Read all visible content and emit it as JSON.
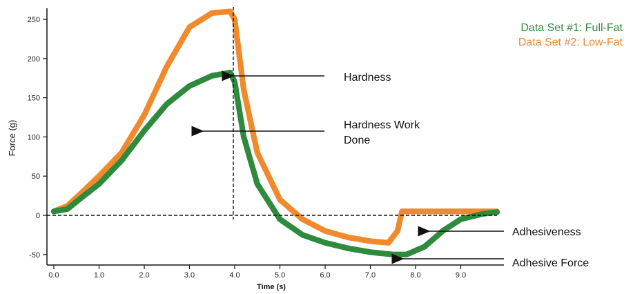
{
  "colors": {
    "full_fat": "#2e8b3e",
    "low_fat": "#f08a2c",
    "axis": "#111111"
  },
  "chart_data": {
    "type": "scatter",
    "title": "",
    "xlabel": "Time (s)",
    "ylabel": "Force (g)",
    "xlim": [
      0,
      9.9
    ],
    "ylim": [
      -62,
      262
    ],
    "x_ticks": [
      "0.0",
      "1.0",
      "2.0",
      "3.0",
      "4.0",
      "5.0",
      "6.0",
      "7.0",
      "8.0",
      "9.0"
    ],
    "y_ticks": [
      "-50",
      "0",
      "50",
      "100",
      "150",
      "200",
      "250"
    ],
    "grid": false,
    "legend_position": "top-right",
    "series": [
      {
        "name": "Data Set #1: Full-Fat",
        "color": "#2e8b3e",
        "x": [
          0.0,
          0.3,
          0.6,
          1.0,
          1.5,
          2.0,
          2.5,
          3.0,
          3.5,
          3.9,
          4.0,
          4.2,
          4.5,
          5.0,
          5.5,
          6.0,
          6.5,
          7.0,
          7.5,
          7.8,
          8.2,
          8.6,
          9.0,
          9.5,
          9.8
        ],
        "y": [
          5,
          8,
          22,
          40,
          70,
          108,
          142,
          165,
          178,
          182,
          170,
          100,
          40,
          -5,
          -25,
          -35,
          -42,
          -47,
          -50,
          -50,
          -40,
          -20,
          -5,
          2,
          4
        ]
      },
      {
        "name": "Data Set #2: Low-Fat",
        "color": "#f08a2c",
        "x": [
          0.0,
          0.3,
          0.6,
          1.0,
          1.5,
          2.0,
          2.5,
          3.0,
          3.5,
          3.9,
          4.0,
          4.2,
          4.5,
          5.0,
          5.5,
          6.0,
          6.5,
          7.0,
          7.4,
          7.6,
          7.7,
          8.2,
          9.0,
          9.8
        ],
        "y": [
          5,
          12,
          28,
          50,
          80,
          128,
          190,
          240,
          258,
          260,
          250,
          160,
          80,
          20,
          -5,
          -20,
          -28,
          -33,
          -35,
          -20,
          5,
          5,
          5,
          5
        ]
      }
    ],
    "annotations": [
      {
        "text": "Hardness",
        "points_to": [
          3.9,
          180
        ]
      },
      {
        "text": "Hardness Work Done",
        "lines": [
          "Hardness Work",
          "Done"
        ],
        "points_to": [
          3.3,
          105
        ]
      },
      {
        "text": "Adhesiveness",
        "points_to": [
          8.4,
          -20
        ]
      },
      {
        "text": "Adhesive Force",
        "points_to": [
          7.8,
          -55
        ]
      }
    ]
  }
}
